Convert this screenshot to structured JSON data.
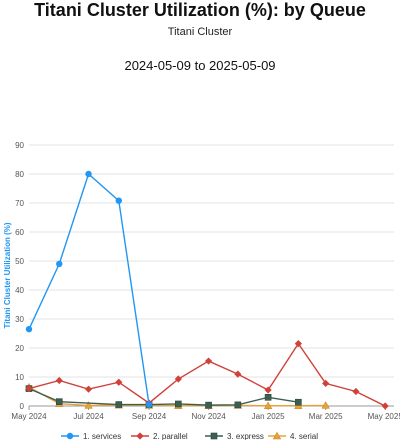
{
  "header": {
    "title": "Titani Cluster Utilization (%): by Queue",
    "subtitle": "Titani Cluster",
    "date_range": "2024-05-09 to 2025-05-09"
  },
  "chart_data": {
    "type": "line",
    "ylabel": "Titani Cluster Utilization (%)",
    "ylim": [
      0,
      90
    ],
    "yticks": [
      0,
      10,
      20,
      30,
      40,
      50,
      60,
      70,
      80,
      90
    ],
    "x_range": [
      "2024-05-01",
      "2025-05-10"
    ],
    "xticks": [
      {
        "date": "2024-05-01",
        "label": "May 2024"
      },
      {
        "date": "2024-07-01",
        "label": "Jul 2024"
      },
      {
        "date": "2024-09-01",
        "label": "Sep 2024"
      },
      {
        "date": "2024-11-01",
        "label": "Nov 2024"
      },
      {
        "date": "2025-01-01",
        "label": "Jan 2025"
      },
      {
        "date": "2025-03-01",
        "label": "Mar 2025"
      },
      {
        "date": "2025-05-01",
        "label": "May 2025"
      }
    ],
    "grid": "horizontal",
    "legend_position": "bottom",
    "series": [
      {
        "name": "1. services",
        "color": "#2196f3",
        "marker": "circle",
        "points": [
          {
            "x": "2024-05-01",
            "y": 26.5
          },
          {
            "x": "2024-06-01",
            "y": 49
          },
          {
            "x": "2024-07-01",
            "y": 80
          },
          {
            "x": "2024-08-01",
            "y": 70.8
          },
          {
            "x": "2024-09-01",
            "y": 0.5
          }
        ]
      },
      {
        "name": "2. parallel",
        "color": "#d0413a",
        "marker": "diamond",
        "points": [
          {
            "x": "2024-05-01",
            "y": 6
          },
          {
            "x": "2024-06-01",
            "y": 8.8
          },
          {
            "x": "2024-07-01",
            "y": 5.8
          },
          {
            "x": "2024-08-01",
            "y": 8.2
          },
          {
            "x": "2024-09-01",
            "y": 1
          },
          {
            "x": "2024-10-01",
            "y": 9.3
          },
          {
            "x": "2024-11-01",
            "y": 15.5
          },
          {
            "x": "2024-12-01",
            "y": 11
          },
          {
            "x": "2025-01-01",
            "y": 5.5
          },
          {
            "x": "2025-02-01",
            "y": 21.5
          },
          {
            "x": "2025-03-01",
            "y": 7.8
          },
          {
            "x": "2025-04-01",
            "y": 5
          },
          {
            "x": "2025-05-01",
            "y": 0
          }
        ]
      },
      {
        "name": "3. express",
        "color": "#3d5f52",
        "marker": "square",
        "points": [
          {
            "x": "2024-05-01",
            "y": 6
          },
          {
            "x": "2024-06-01",
            "y": 1.5
          },
          {
            "x": "2024-08-01",
            "y": 0.5
          },
          {
            "x": "2024-09-01",
            "y": 0.5
          },
          {
            "x": "2024-10-01",
            "y": 0.7
          },
          {
            "x": "2024-11-01",
            "y": 0.3
          },
          {
            "x": "2024-12-01",
            "y": 0.4
          },
          {
            "x": "2025-01-01",
            "y": 3
          },
          {
            "x": "2025-02-01",
            "y": 1.3
          }
        ]
      },
      {
        "name": "4. serial",
        "color": "#e8a23a",
        "marker": "triangle",
        "points": [
          {
            "x": "2024-05-01",
            "y": 6.5
          },
          {
            "x": "2024-06-01",
            "y": 0.8
          },
          {
            "x": "2024-07-01",
            "y": 0.2
          },
          {
            "x": "2024-08-01",
            "y": 0.3
          },
          {
            "x": "2024-09-01",
            "y": 0.2
          },
          {
            "x": "2024-10-01",
            "y": 0.1
          },
          {
            "x": "2024-11-01",
            "y": 0.1
          },
          {
            "x": "2024-12-01",
            "y": 0.2
          },
          {
            "x": "2025-01-01",
            "y": 0.1
          },
          {
            "x": "2025-02-01",
            "y": 0.1
          },
          {
            "x": "2025-03-01",
            "y": 0.2
          }
        ]
      }
    ]
  }
}
